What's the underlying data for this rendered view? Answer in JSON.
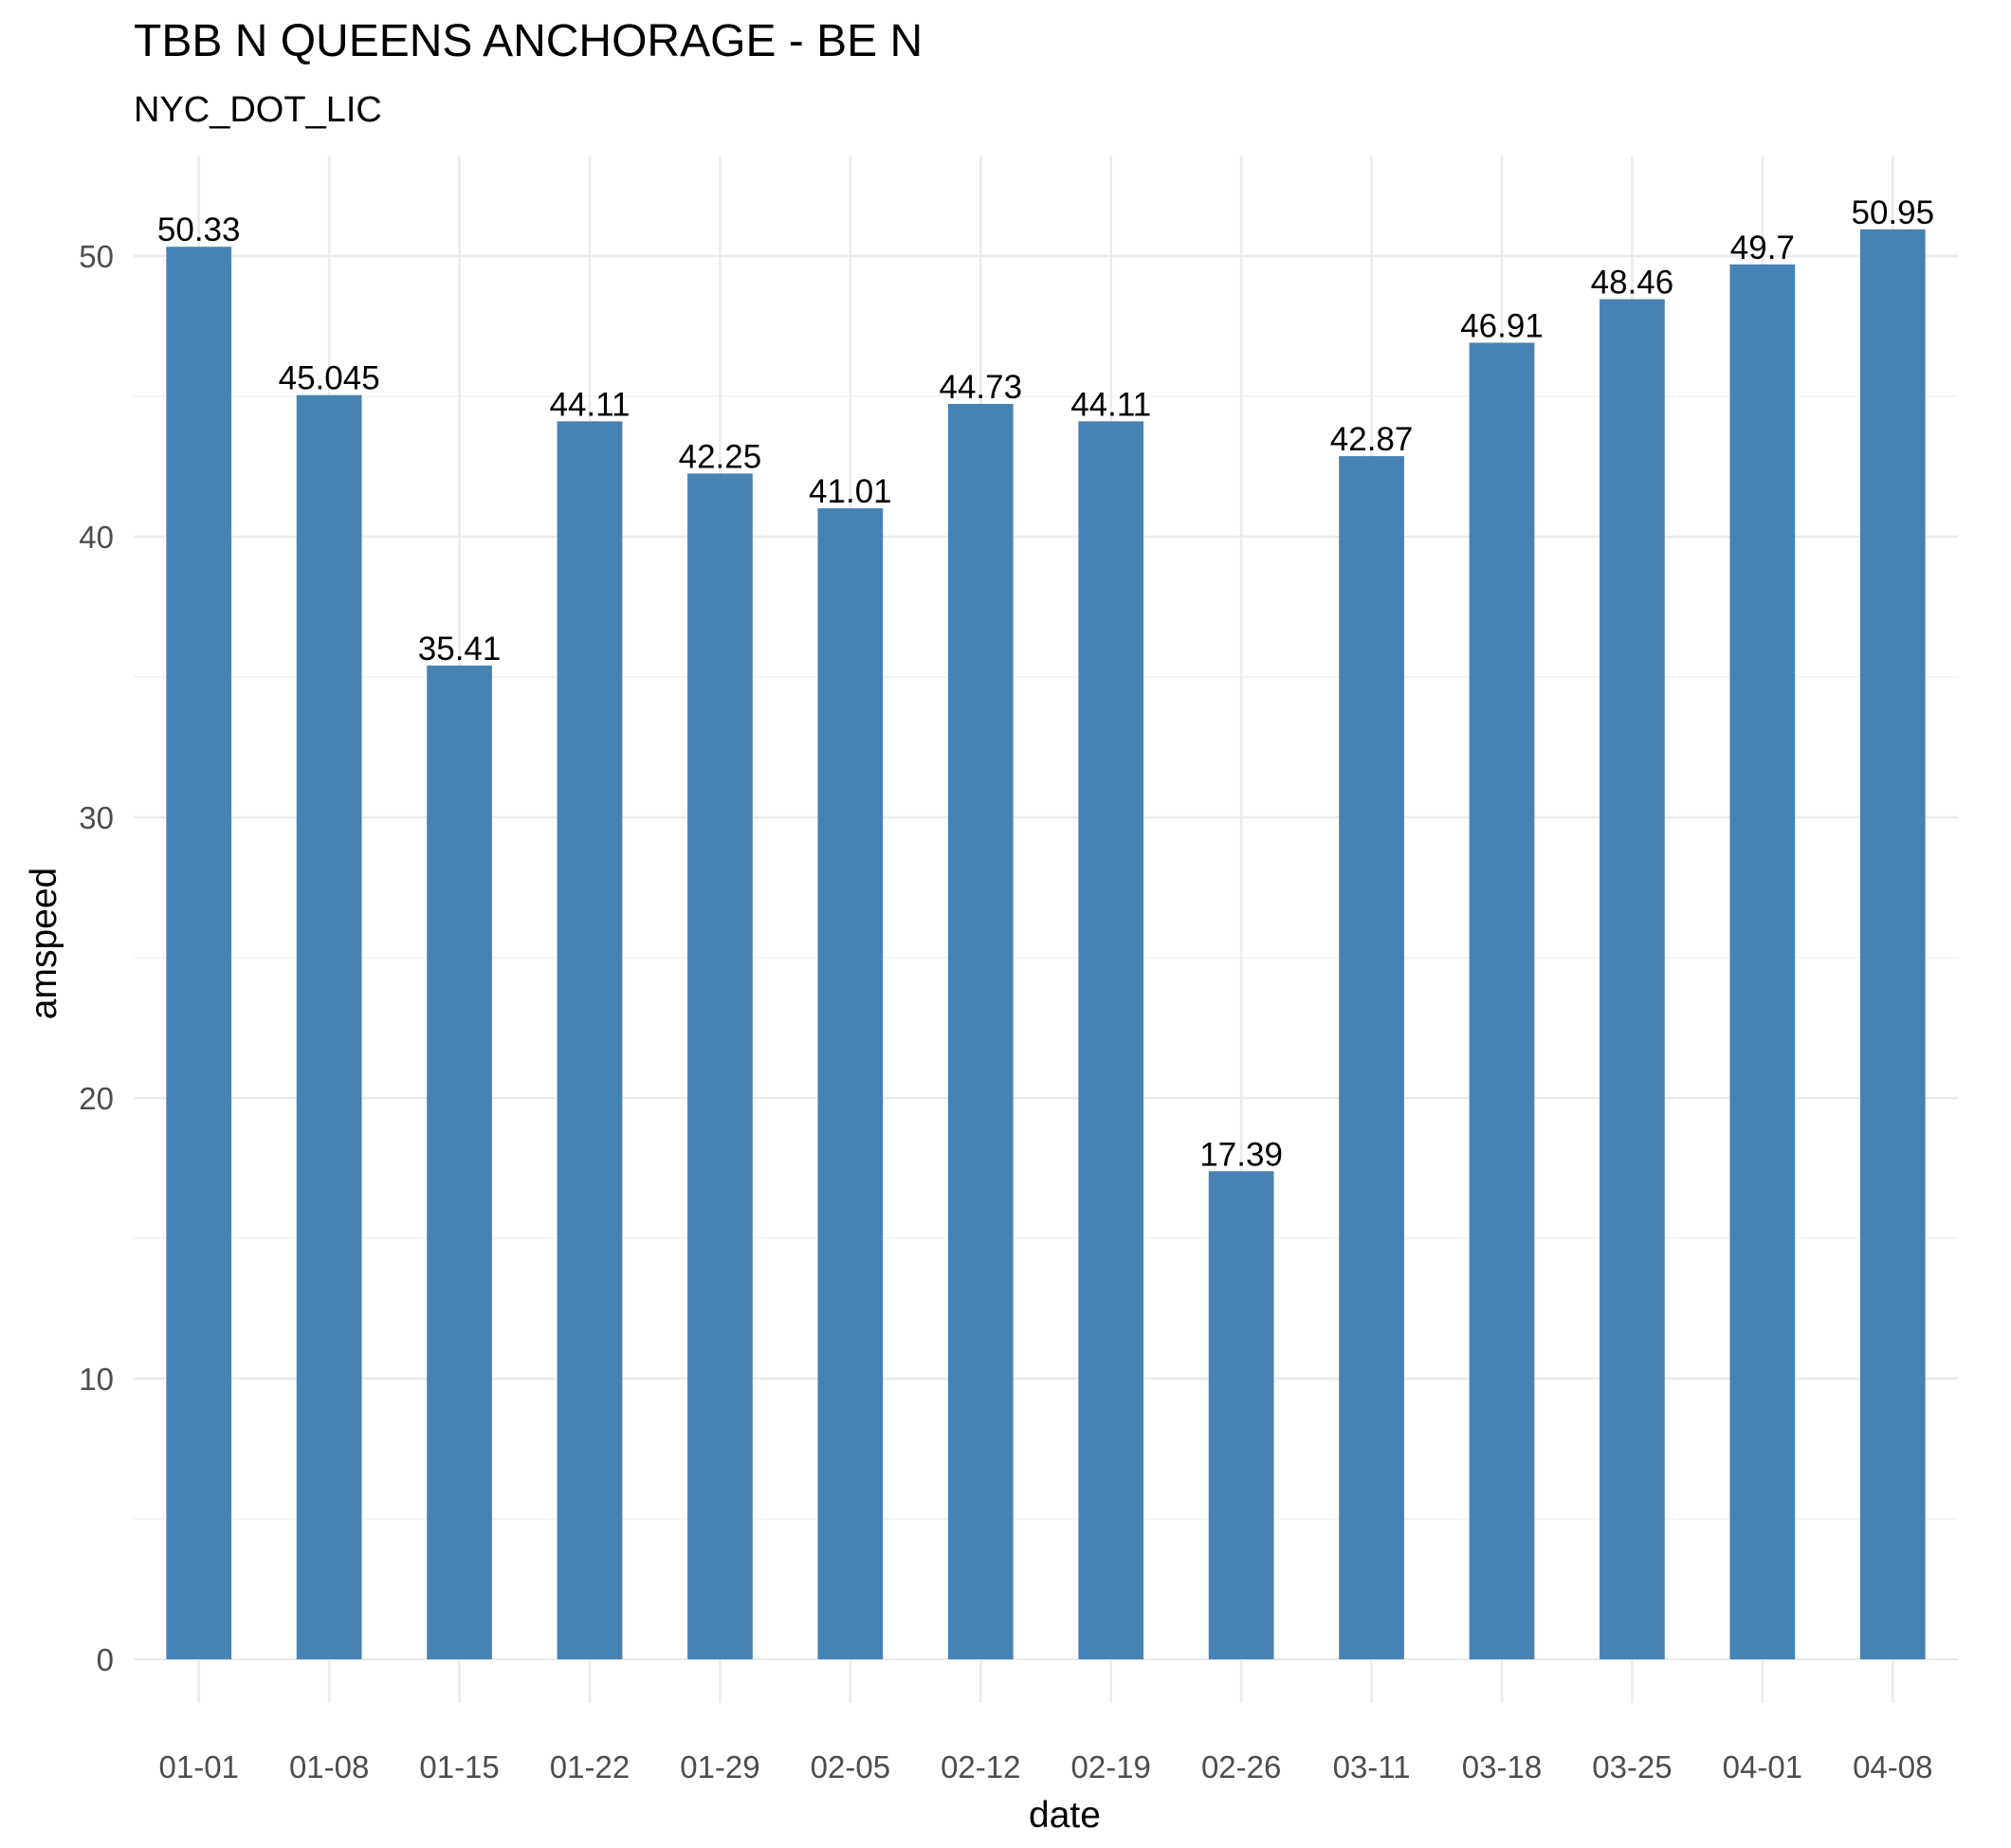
{
  "chart_data": {
    "type": "bar",
    "title": "TBB N QUEENS ANCHORAGE - BE N",
    "subtitle": "NYC_DOT_LIC",
    "xlabel": "date",
    "ylabel": "amspeed",
    "categories": [
      "01-01",
      "01-08",
      "01-15",
      "01-22",
      "01-29",
      "02-05",
      "02-12",
      "02-19",
      "02-26",
      "03-11",
      "03-18",
      "03-25",
      "04-01",
      "04-08"
    ],
    "values": [
      50.33,
      45.045,
      35.41,
      44.11,
      42.25,
      41.01,
      44.73,
      44.11,
      17.39,
      42.87,
      46.91,
      48.46,
      49.7,
      50.95
    ],
    "value_labels": [
      "50.33",
      "45.045",
      "35.41",
      "44.11",
      "42.25",
      "41.01",
      "44.73",
      "44.11",
      "17.39",
      "42.87",
      "46.91",
      "48.46",
      "49.7",
      "50.95"
    ],
    "yticks": [
      0,
      10,
      20,
      30,
      40,
      50
    ],
    "ylim": [
      0,
      53.5
    ],
    "grid": true,
    "bar_color": "#4682B4"
  }
}
